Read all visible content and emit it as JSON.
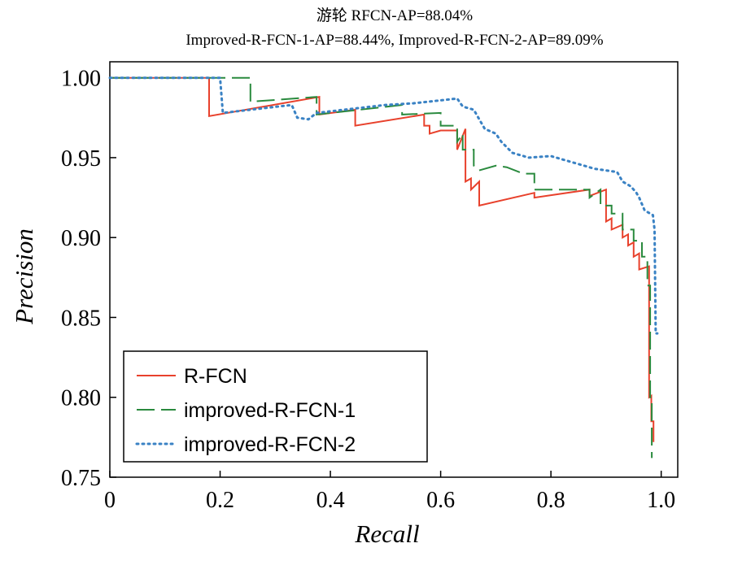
{
  "chart_data": {
    "type": "line",
    "title": "游轮  RFCN-AP=88.04%",
    "subtitle": "Improved-R-FCN-1-AP=88.44%, Improved-R-FCN-2-AP=89.09%",
    "xlabel": "Recall",
    "ylabel": "Precision",
    "xlim": [
      0,
      1.03
    ],
    "ylim": [
      0.75,
      1.01
    ],
    "x_ticks": [
      "0",
      "0.2",
      "0.4",
      "0.6",
      "0.8",
      "1.0"
    ],
    "y_ticks": [
      "1.00",
      "0.95",
      "0.90",
      "0.85",
      "0.80",
      "0.75"
    ],
    "grid": false,
    "legend_position": "bottom-left",
    "series": [
      {
        "name": "R-FCN",
        "color": "#e8412c",
        "dash": "solid",
        "points": [
          [
            0,
            1.0
          ],
          [
            0.18,
            1.0
          ],
          [
            0.18,
            0.976
          ],
          [
            0.38,
            0.988
          ],
          [
            0.38,
            0.977
          ],
          [
            0.445,
            0.98
          ],
          [
            0.445,
            0.97
          ],
          [
            0.57,
            0.977
          ],
          [
            0.57,
            0.97
          ],
          [
            0.58,
            0.97
          ],
          [
            0.58,
            0.965
          ],
          [
            0.6,
            0.967
          ],
          [
            0.63,
            0.967
          ],
          [
            0.63,
            0.955
          ],
          [
            0.645,
            0.968
          ],
          [
            0.645,
            0.935
          ],
          [
            0.655,
            0.937
          ],
          [
            0.655,
            0.93
          ],
          [
            0.67,
            0.935
          ],
          [
            0.67,
            0.92
          ],
          [
            0.77,
            0.928
          ],
          [
            0.77,
            0.925
          ],
          [
            0.87,
            0.93
          ],
          [
            0.87,
            0.926
          ],
          [
            0.9,
            0.93
          ],
          [
            0.9,
            0.91
          ],
          [
            0.91,
            0.912
          ],
          [
            0.91,
            0.905
          ],
          [
            0.93,
            0.908
          ],
          [
            0.93,
            0.9
          ],
          [
            0.94,
            0.902
          ],
          [
            0.94,
            0.895
          ],
          [
            0.95,
            0.897
          ],
          [
            0.95,
            0.888
          ],
          [
            0.96,
            0.89
          ],
          [
            0.96,
            0.88
          ],
          [
            0.978,
            0.882
          ],
          [
            0.978,
            0.8
          ],
          [
            0.982,
            0.801
          ],
          [
            0.982,
            0.785
          ],
          [
            0.986,
            0.785
          ],
          [
            0.986,
            0.772
          ]
        ]
      },
      {
        "name": "improved-R-FCN-1",
        "color": "#2a8a3e",
        "dash": "long-dash",
        "points": [
          [
            0,
            1.0
          ],
          [
            0.255,
            1.0
          ],
          [
            0.255,
            0.985
          ],
          [
            0.375,
            0.988
          ],
          [
            0.375,
            0.977
          ],
          [
            0.53,
            0.983
          ],
          [
            0.53,
            0.977
          ],
          [
            0.6,
            0.978
          ],
          [
            0.6,
            0.97
          ],
          [
            0.61,
            0.97
          ],
          [
            0.63,
            0.97
          ],
          [
            0.63,
            0.96
          ],
          [
            0.64,
            0.965
          ],
          [
            0.64,
            0.955
          ],
          [
            0.66,
            0.955
          ],
          [
            0.66,
            0.945
          ],
          [
            0.67,
            0.942
          ],
          [
            0.7,
            0.945
          ],
          [
            0.72,
            0.944
          ],
          [
            0.75,
            0.94
          ],
          [
            0.77,
            0.94
          ],
          [
            0.77,
            0.93
          ],
          [
            0.87,
            0.93
          ],
          [
            0.87,
            0.925
          ],
          [
            0.89,
            0.93
          ],
          [
            0.89,
            0.92
          ],
          [
            0.91,
            0.92
          ],
          [
            0.91,
            0.915
          ],
          [
            0.93,
            0.915
          ],
          [
            0.93,
            0.905
          ],
          [
            0.95,
            0.905
          ],
          [
            0.95,
            0.898
          ],
          [
            0.965,
            0.898
          ],
          [
            0.965,
            0.888
          ],
          [
            0.975,
            0.888
          ],
          [
            0.975,
            0.87
          ],
          [
            0.98,
            0.87
          ],
          [
            0.98,
            0.8
          ],
          [
            0.983,
            0.8
          ],
          [
            0.983,
            0.762
          ]
        ]
      },
      {
        "name": "improved-R-FCN-2",
        "color": "#3a82c4",
        "dash": "dotted",
        "points": [
          [
            0,
            1.0
          ],
          [
            0.2,
            1.0
          ],
          [
            0.205,
            0.978
          ],
          [
            0.33,
            0.983
          ],
          [
            0.34,
            0.975
          ],
          [
            0.36,
            0.974
          ],
          [
            0.375,
            0.978
          ],
          [
            0.5,
            0.983
          ],
          [
            0.55,
            0.984
          ],
          [
            0.63,
            0.987
          ],
          [
            0.64,
            0.982
          ],
          [
            0.66,
            0.98
          ],
          [
            0.68,
            0.968
          ],
          [
            0.7,
            0.965
          ],
          [
            0.71,
            0.96
          ],
          [
            0.73,
            0.953
          ],
          [
            0.76,
            0.95
          ],
          [
            0.8,
            0.951
          ],
          [
            0.83,
            0.948
          ],
          [
            0.86,
            0.945
          ],
          [
            0.88,
            0.943
          ],
          [
            0.9,
            0.942
          ],
          [
            0.92,
            0.941
          ],
          [
            0.93,
            0.935
          ],
          [
            0.945,
            0.932
          ],
          [
            0.955,
            0.928
          ],
          [
            0.96,
            0.925
          ],
          [
            0.97,
            0.917
          ],
          [
            0.985,
            0.914
          ],
          [
            0.988,
            0.905
          ],
          [
            0.99,
            0.84
          ],
          [
            0.993,
            0.84
          ]
        ]
      }
    ]
  }
}
